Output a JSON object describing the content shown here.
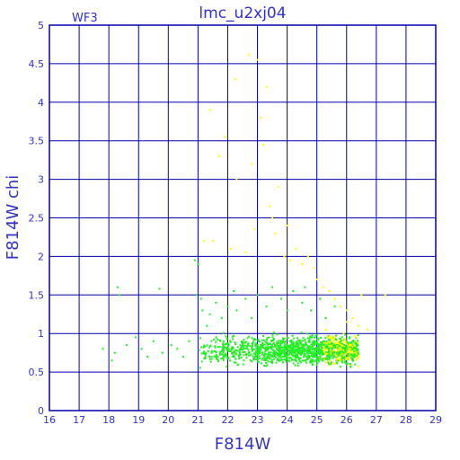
{
  "chart_data": {
    "type": "scatter",
    "title": "lmc_u2xj04",
    "panel_label": "WF3",
    "xlabel": "F814W",
    "ylabel": "F814W  chi",
    "xlim": [
      16,
      29
    ],
    "ylim": [
      0,
      5
    ],
    "xticks": [
      "16",
      "17",
      "18",
      "19",
      "20",
      "21",
      "22",
      "23",
      "24",
      "25",
      "26",
      "27",
      "28",
      "29"
    ],
    "yticks": [
      "0",
      "0.5",
      "1",
      "1.5",
      "2",
      "2.5",
      "3",
      "3.5",
      "4",
      "4.5",
      "5"
    ],
    "grid": true,
    "colors": {
      "frame": "#0000aa",
      "text": "#3333cc",
      "green": "#22ee22",
      "yellow": "#ffff00"
    },
    "series": [
      {
        "color": "#22ee22",
        "points": [
          [
            17.8,
            0.8
          ],
          [
            18.1,
            0.65
          ],
          [
            18.2,
            0.75
          ],
          [
            18.3,
            1.6
          ],
          [
            18.35,
            1.5
          ],
          [
            18.6,
            0.85
          ],
          [
            18.9,
            0.95
          ],
          [
            19.1,
            0.8
          ],
          [
            19.3,
            0.7
          ],
          [
            19.5,
            0.9
          ],
          [
            19.7,
            1.58
          ],
          [
            19.8,
            0.75
          ],
          [
            20.1,
            0.85
          ],
          [
            20.3,
            0.8
          ],
          [
            20.5,
            0.7
          ],
          [
            20.7,
            0.9
          ],
          [
            20.9,
            1.95
          ],
          [
            20.95,
            1.5
          ],
          [
            21.0,
            1.9
          ],
          [
            21.1,
            1.45
          ],
          [
            21.15,
            1.3
          ],
          [
            21.3,
            1.1
          ],
          [
            21.4,
            1.25
          ],
          [
            21.6,
            1.4
          ],
          [
            21.8,
            1.2
          ],
          [
            22.0,
            1.35
          ],
          [
            22.2,
            1.55
          ],
          [
            22.3,
            1.3
          ],
          [
            22.6,
            1.45
          ],
          [
            22.8,
            1.2
          ],
          [
            23.0,
            1.5
          ],
          [
            23.3,
            1.35
          ],
          [
            23.5,
            1.6
          ],
          [
            23.8,
            1.45
          ],
          [
            24.0,
            1.3
          ],
          [
            24.2,
            1.55
          ],
          [
            24.5,
            1.4
          ],
          [
            24.6,
            1.6
          ],
          [
            24.8,
            1.3
          ],
          [
            25.1,
            1.45
          ],
          [
            25.3,
            1.2
          ],
          [
            25.6,
            1.35
          ]
        ]
      },
      {
        "color": "#ffff00",
        "points": [
          [
            21.2,
            2.2
          ],
          [
            21.4,
            3.9
          ],
          [
            21.5,
            2.2
          ],
          [
            21.7,
            3.3
          ],
          [
            21.9,
            3.55
          ],
          [
            22.1,
            2.1
          ],
          [
            22.25,
            4.3
          ],
          [
            22.3,
            3.0
          ],
          [
            22.6,
            2.05
          ],
          [
            22.7,
            4.62
          ],
          [
            22.8,
            3.2
          ],
          [
            22.9,
            2.35
          ],
          [
            23.0,
            4.55
          ],
          [
            23.1,
            3.8
          ],
          [
            23.2,
            3.45
          ],
          [
            23.3,
            4.2
          ],
          [
            23.4,
            2.65
          ],
          [
            23.5,
            2.5
          ],
          [
            23.6,
            2.3
          ],
          [
            23.7,
            2.9
          ],
          [
            23.9,
            2.0
          ],
          [
            24.0,
            2.4
          ],
          [
            24.1,
            1.95
          ],
          [
            24.3,
            2.1
          ],
          [
            24.5,
            1.9
          ],
          [
            24.7,
            2.0
          ],
          [
            24.9,
            1.85
          ],
          [
            25.0,
            1.7
          ],
          [
            25.2,
            1.6
          ],
          [
            25.4,
            1.55
          ],
          [
            25.6,
            1.45
          ],
          [
            25.8,
            1.35
          ],
          [
            26.0,
            1.3
          ],
          [
            26.2,
            1.2
          ],
          [
            26.4,
            1.1
          ],
          [
            26.5,
            1.5
          ],
          [
            26.7,
            1.05
          ],
          [
            27.3,
            1.5
          ],
          [
            25.5,
            0.95
          ],
          [
            25.7,
            0.9
          ],
          [
            25.9,
            1.0
          ],
          [
            26.1,
            0.85
          ],
          [
            26.3,
            0.95
          ],
          [
            25.3,
            1.05
          ],
          [
            25.8,
            0.8
          ],
          [
            26.2,
            0.75
          ],
          [
            26.0,
            1.15
          ]
        ]
      }
    ],
    "dense_region": {
      "color": "#22ee22",
      "x_range": [
        21.0,
        26.4
      ],
      "y_center": 0.78,
      "y_spread": 0.12
    }
  }
}
